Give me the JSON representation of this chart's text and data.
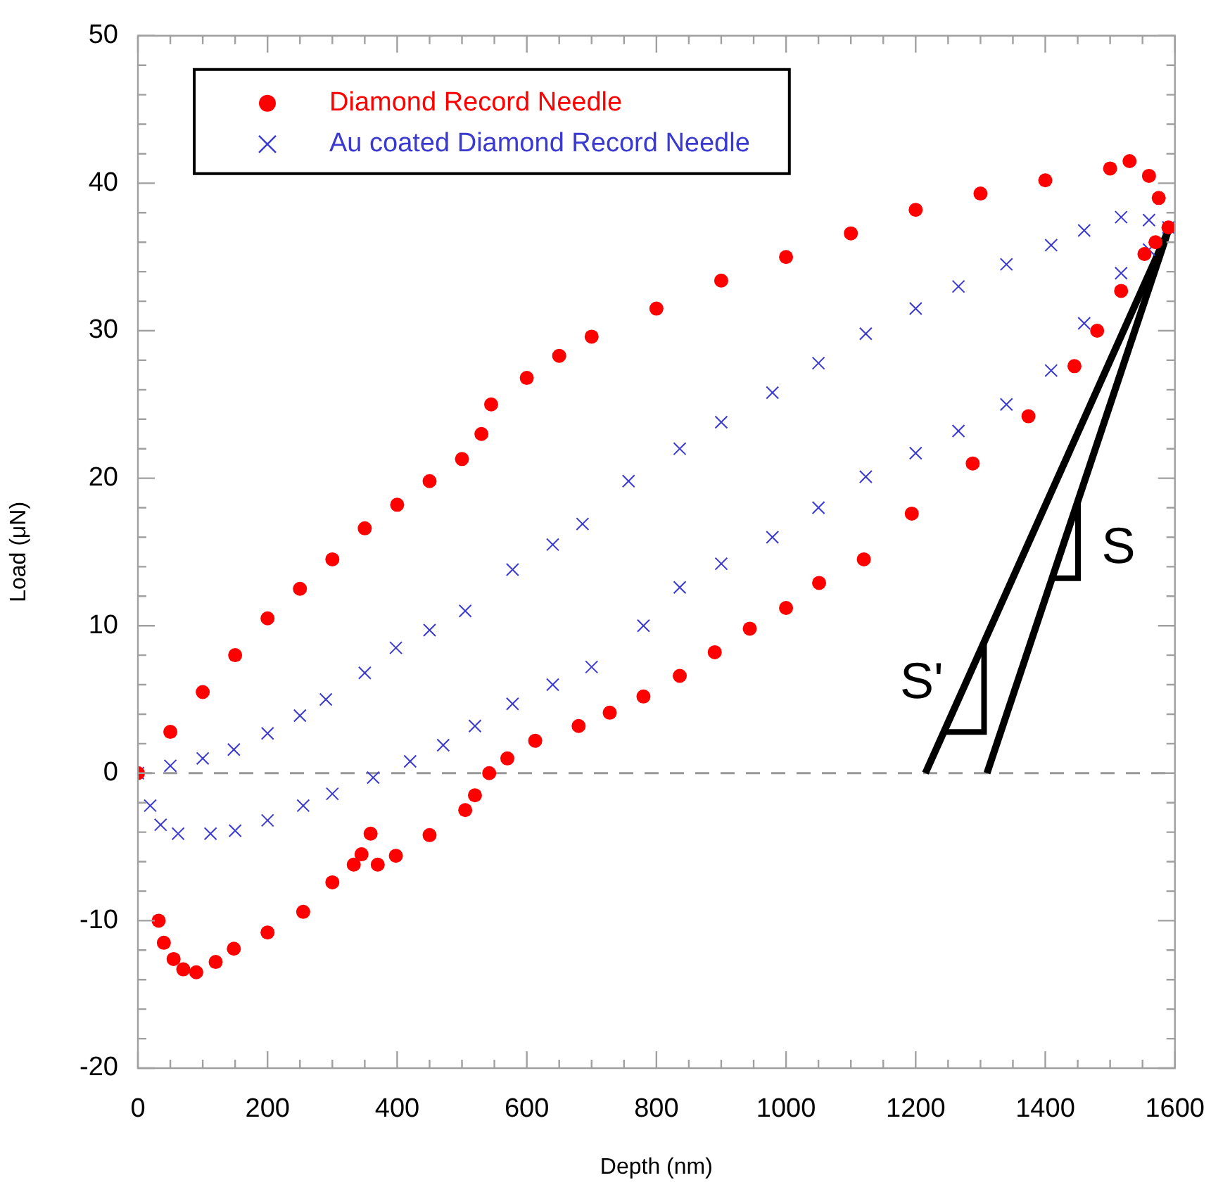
{
  "chart_data": {
    "type": "scatter",
    "xlabel": "Depth (nm)",
    "ylabel": "Load (μN)",
    "xlim": [
      0,
      1600
    ],
    "xticks": [
      0,
      200,
      400,
      600,
      800,
      1000,
      1200,
      1400,
      1600
    ],
    "ylim": [
      -20,
      50
    ],
    "yticks": [
      -20,
      -10,
      0,
      10,
      20,
      30,
      40,
      50
    ],
    "grid": false,
    "legend": "top left",
    "series": [
      {
        "name": "Diamond Record Needle",
        "color": "#ff0000",
        "marker": "circle",
        "x": [
          0,
          50,
          100,
          150,
          200,
          250,
          300,
          350,
          400,
          450,
          500,
          530,
          545,
          600,
          650,
          700,
          800,
          900,
          1000,
          1100,
          1200,
          1300,
          1400,
          1500,
          1530,
          1560,
          1575,
          1590,
          1570,
          1553,
          1517,
          1480,
          1445,
          1374,
          1288,
          1194,
          1120,
          1051,
          1000,
          944,
          890,
          836,
          780,
          728,
          680,
          613,
          570,
          542,
          520,
          505,
          450,
          398,
          370,
          359,
          345,
          333,
          300,
          255,
          200,
          148,
          120,
          90,
          70,
          55,
          40,
          32
        ],
        "values": [
          0,
          2.8,
          5.5,
          8,
          10.5,
          12.5,
          14.5,
          16.6,
          18.2,
          19.8,
          21.3,
          23,
          25,
          26.8,
          28.3,
          29.6,
          31.5,
          33.4,
          35,
          36.6,
          38.2,
          39.3,
          40.2,
          41,
          41.5,
          40.5,
          39,
          37,
          36,
          35.2,
          32.7,
          30,
          27.6,
          24.2,
          21,
          17.6,
          14.5,
          12.9,
          11.2,
          9.8,
          8.2,
          6.6,
          5.2,
          4.1,
          3.2,
          2.2,
          1,
          0,
          -1.5,
          -2.5,
          -4.2,
          -5.6,
          -6.2,
          -4.1,
          -5.5,
          -6.2,
          -7.4,
          -9.4,
          -10.8,
          -11.9,
          -12.8,
          -13.5,
          -13.3,
          -12.6,
          -11.5,
          -10
        ]
      },
      {
        "name": "Au coated Diamond Record Needle",
        "color": "#3a3ad0",
        "marker": "cross",
        "x": [
          0,
          50,
          100,
          148,
          200,
          250,
          290,
          350,
          398,
          450,
          505,
          578,
          640,
          686,
          757,
          836,
          900,
          979,
          1050,
          1123,
          1200,
          1266,
          1340,
          1409,
          1460,
          1517,
          1560,
          1590,
          1560,
          1517,
          1460,
          1409,
          1340,
          1266,
          1200,
          1123,
          1050,
          979,
          900,
          836,
          780,
          700,
          640,
          578,
          520,
          471,
          420,
          363,
          300,
          255,
          200,
          150,
          112,
          62,
          35,
          19
        ],
        "values": [
          0,
          0.5,
          1,
          1.6,
          2.7,
          3.9,
          5,
          6.8,
          8.5,
          9.7,
          11,
          13.8,
          15.5,
          16.9,
          19.8,
          22,
          23.8,
          25.8,
          27.8,
          29.8,
          31.5,
          33,
          34.5,
          35.8,
          36.8,
          37.7,
          37.5,
          37,
          35.5,
          33.9,
          30.5,
          27.3,
          25,
          23.2,
          21.7,
          20.1,
          18,
          16,
          14.2,
          12.6,
          10,
          7.2,
          6,
          4.7,
          3.2,
          1.9,
          0.8,
          -0.3,
          -1.4,
          -2.2,
          -3.2,
          -3.9,
          -4.1,
          -4.1,
          -3.5,
          -2.2
        ]
      },
      {
        "type": "line",
        "color": "#000000",
        "marker": "none",
        "x": [
          1310,
          1589
        ],
        "values": [
          0,
          36.7
        ]
      },
      {
        "type": "line",
        "color": "#000000",
        "marker": "none",
        "x": [
          1215,
          1589
        ],
        "values": [
          0,
          36.7
        ]
      }
    ],
    "ref_lines": [
      {
        "axis": "y",
        "value": 0,
        "color": "#999999",
        "line_style": "dashed"
      }
    ],
    "annotations": [
      {
        "text": "S",
        "x": 1426,
        "y": 15.2
      },
      {
        "text": "S'",
        "x": 1269,
        "y": 5.3
      }
    ]
  }
}
